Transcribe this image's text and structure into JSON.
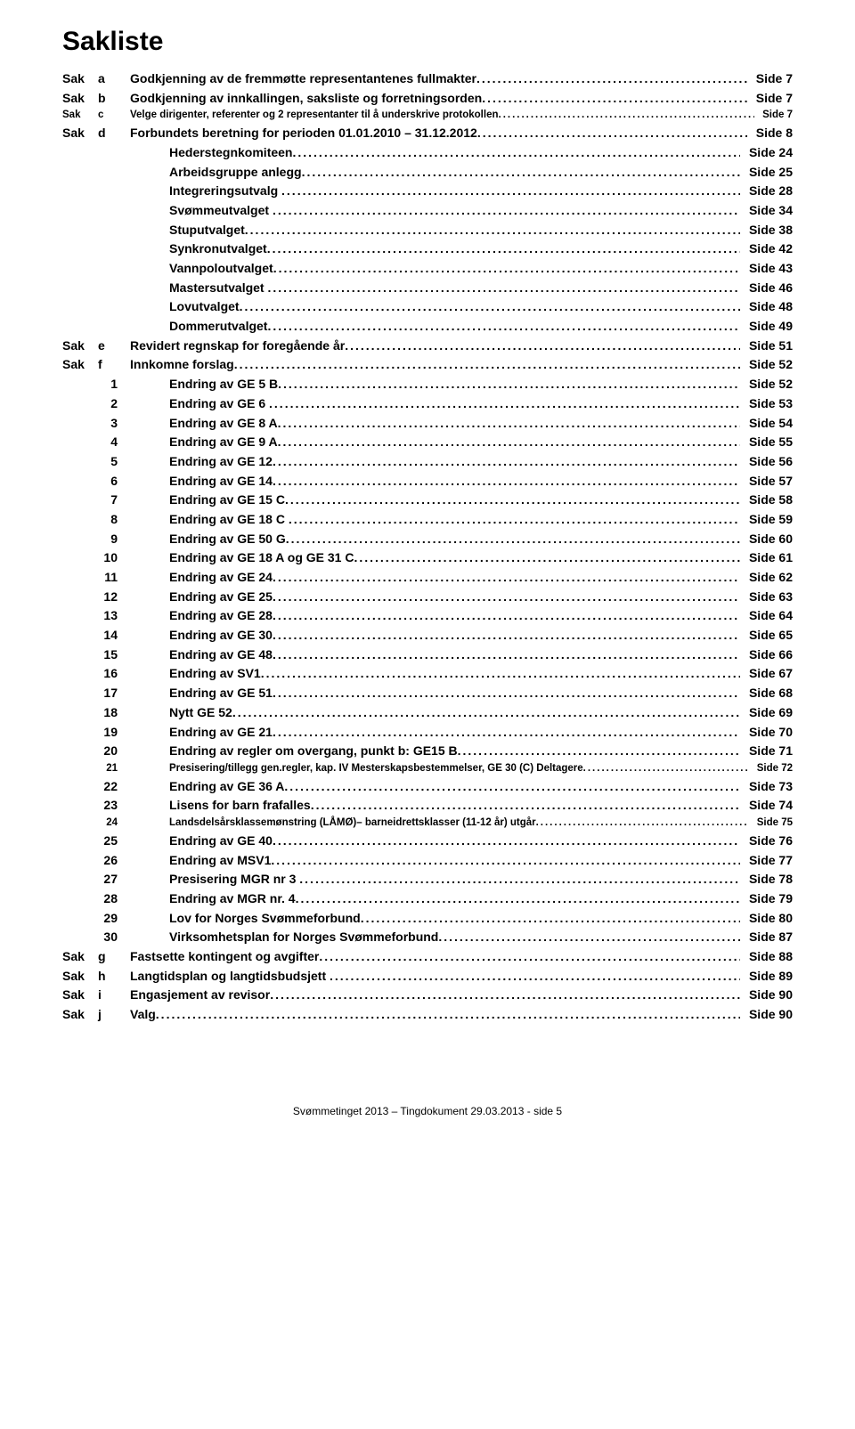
{
  "title": "Sakliste",
  "sak_word": "Sak",
  "side_word": "Side",
  "rows": [
    {
      "type": "sak",
      "code": "a",
      "label": "Godkjenning av de fremmøtte representantenes fullmakter",
      "page": "7"
    },
    {
      "type": "sak",
      "code": "b",
      "label": "Godkjenning av innkallingen, saksliste og forretningsorden",
      "page": "7"
    },
    {
      "type": "sak",
      "code": "c",
      "label": "Velge dirigenter, referenter og 2 representanter til å underskrive protokollen",
      "page": "7",
      "smallfont": true
    },
    {
      "type": "sak",
      "code": "d",
      "label": "Forbundets beretning for perioden 01.01.2010 – 31.12.2012",
      "page": "8"
    },
    {
      "type": "sub",
      "label": "Hederstegnkomiteen",
      "page": "24"
    },
    {
      "type": "sub",
      "label": "Arbeidsgruppe anlegg",
      "page": "25"
    },
    {
      "type": "sub",
      "label": "Integreringsutvalg ",
      "page": "28"
    },
    {
      "type": "sub",
      "label": "Svømmeutvalget ",
      "page": "34"
    },
    {
      "type": "sub",
      "label": "Stuputvalget",
      "page": "38"
    },
    {
      "type": "sub",
      "label": "Synkronutvalget",
      "page": "42"
    },
    {
      "type": "sub",
      "label": "Vannpoloutvalget",
      "page": "43"
    },
    {
      "type": "sub",
      "label": "Mastersutvalget ",
      "page": "46"
    },
    {
      "type": "sub",
      "label": "Lovutvalget",
      "page": "48"
    },
    {
      "type": "sub",
      "label": "Dommerutvalget",
      "page": "49"
    },
    {
      "type": "sak",
      "code": "e",
      "label": "Revidert regnskap for foregående år",
      "page": "51"
    },
    {
      "type": "sak",
      "code": "f",
      "label": "Innkomne forslag",
      "page": "52"
    },
    {
      "type": "num",
      "code": "1",
      "label": "Endring av GE 5 B",
      "page": "52"
    },
    {
      "type": "num",
      "code": "2",
      "label": "Endring av GE 6 ",
      "page": "53"
    },
    {
      "type": "num",
      "code": "3",
      "label": "Endring av GE 8 A",
      "page": "54"
    },
    {
      "type": "num",
      "code": "4",
      "label": "Endring av GE 9 A",
      "page": "55"
    },
    {
      "type": "num",
      "code": "5",
      "label": "Endring av GE 12",
      "page": "56"
    },
    {
      "type": "num",
      "code": "6",
      "label": "Endring av GE 14",
      "page": "57"
    },
    {
      "type": "num",
      "code": "7",
      "label": "Endring av GE 15 C",
      "page": "58"
    },
    {
      "type": "num",
      "code": "8",
      "label": "Endring av GE 18 C ",
      "page": "59"
    },
    {
      "type": "num",
      "code": "9",
      "label": "Endring av GE 50 G",
      "page": "60"
    },
    {
      "type": "num",
      "code": "10",
      "label": "Endring av GE 18 A og GE 31 C",
      "page": "61"
    },
    {
      "type": "num",
      "code": "11",
      "label": "Endring av GE 24",
      "page": "62"
    },
    {
      "type": "num",
      "code": "12",
      "label": "Endring av GE 25",
      "page": "63"
    },
    {
      "type": "num",
      "code": "13",
      "label": "Endring av GE 28",
      "page": "64"
    },
    {
      "type": "num",
      "code": "14",
      "label": "Endring av GE 30",
      "page": "65"
    },
    {
      "type": "num",
      "code": "15",
      "label": "Endring av GE 48",
      "page": "66"
    },
    {
      "type": "num",
      "code": "16",
      "label": "Endring av SV1",
      "page": "67"
    },
    {
      "type": "num",
      "code": "17",
      "label": "Endring av GE 51",
      "page": "68"
    },
    {
      "type": "num",
      "code": "18",
      "label": "Nytt GE 52",
      "page": "69"
    },
    {
      "type": "num",
      "code": "19",
      "label": "Endring av GE 21",
      "page": "70"
    },
    {
      "type": "num",
      "code": "20",
      "label": "Endring av regler om overgang, punkt b: GE15 B",
      "page": "71"
    },
    {
      "type": "num",
      "code": "21",
      "label": "Presisering/tillegg gen.regler, kap. IV Mesterskapsbestemmelser, GE 30 (C) Deltagere",
      "page": "72",
      "smallfont": true
    },
    {
      "type": "num",
      "code": "22",
      "label": "Endring av GE 36 A",
      "page": "73"
    },
    {
      "type": "num",
      "code": "23",
      "label": "Lisens for barn frafalles",
      "page": "74"
    },
    {
      "type": "num",
      "code": "24",
      "label": "Landsdelsårsklassemønstring (LÅMØ)– barneidrettsklasser (11-12 år) utgår",
      "page": "75",
      "smallfont": true
    },
    {
      "type": "num",
      "code": "25",
      "label": "Endring av GE 40",
      "page": "76"
    },
    {
      "type": "num",
      "code": "26",
      "label": "Endring av MSV1",
      "page": "77"
    },
    {
      "type": "num",
      "code": "27",
      "label": "Presisering MGR nr 3 ",
      "page": "78"
    },
    {
      "type": "num",
      "code": "28",
      "label": "Endring av MGR nr. 4",
      "page": "79"
    },
    {
      "type": "num",
      "code": "29",
      "label": "Lov for Norges Svømmeforbund",
      "page": "80"
    },
    {
      "type": "num",
      "code": "30",
      "label": "Virksomhetsplan for Norges Svømmeforbund",
      "page": "87"
    },
    {
      "type": "sak",
      "code": "g",
      "label": "Fastsette kontingent og avgifter",
      "page": "88"
    },
    {
      "type": "sak",
      "code": "h",
      "label": "Langtidsplan og langtidsbudsjett ",
      "page": "89"
    },
    {
      "type": "sak",
      "code": "i",
      "label": "Engasjement av revisor",
      "page": "90"
    },
    {
      "type": "sak",
      "code": "j",
      "label": "Valg",
      "page": "90"
    }
  ],
  "footer": "Svømmetinget 2013 – Tingdokument 29.03.2013 - side 5"
}
